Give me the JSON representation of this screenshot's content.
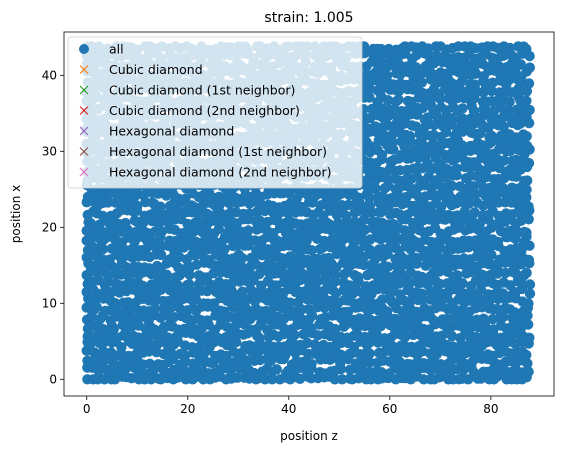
{
  "chart_data": {
    "type": "scatter",
    "title": "strain: 1.005",
    "xlabel": "position z",
    "ylabel": "position x",
    "xlim": [
      -4.5,
      92.5
    ],
    "ylim": [
      -2.2,
      45.7
    ],
    "xticks": [
      0,
      20,
      40,
      60,
      80
    ],
    "yticks": [
      0,
      10,
      20,
      30,
      40
    ],
    "grid": false,
    "legend_position": "top-left",
    "series": [
      {
        "name": "all",
        "marker": "circle",
        "color": "#1f77b4",
        "x_range": [
          0,
          88.5
        ],
        "y_range": [
          0,
          43.8
        ],
        "description_points": "dense atom positions filling the box"
      },
      {
        "name": "Cubic diamond",
        "marker": "x",
        "color": "#ff7f0e",
        "x": [],
        "y": []
      },
      {
        "name": "Cubic diamond (1st neighbor)",
        "marker": "x",
        "color": "#2ca02c",
        "x": [],
        "y": []
      },
      {
        "name": "Cubic diamond (2nd neighbor)",
        "marker": "x",
        "color": "#d62728",
        "x": [],
        "y": []
      },
      {
        "name": "Hexagonal diamond",
        "marker": "x",
        "color": "#9467bd",
        "x": [],
        "y": []
      },
      {
        "name": "Hexagonal diamond (1st neighbor)",
        "marker": "x",
        "color": "#8c564b",
        "x": [],
        "y": []
      },
      {
        "name": "Hexagonal diamond (2nd neighbor)",
        "marker": "x",
        "color": "#e377c2",
        "x": [],
        "y": []
      }
    ]
  }
}
